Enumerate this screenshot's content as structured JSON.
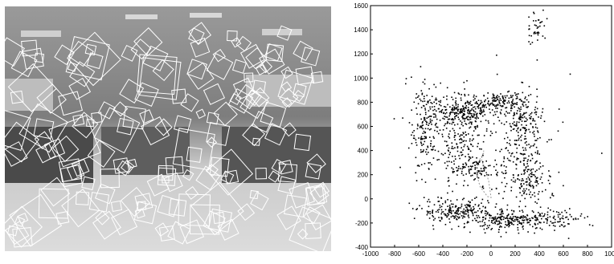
{
  "photo": {
    "description_icon": "office-scene-with-feature-boxes"
  },
  "plot": {
    "chart_data": {
      "type": "scatter",
      "title": "",
      "xlabel": "",
      "ylabel": "",
      "xlim": [
        -1000,
        1000
      ],
      "ylim": [
        -400,
        1600
      ],
      "xticks": [
        "-1000",
        "-800",
        "-600",
        "-400",
        "-200",
        "0",
        "200",
        "400",
        "600",
        "800",
        "1000"
      ],
      "yticks": [
        "-400",
        "-200",
        "0",
        "200",
        "400",
        "600",
        "800",
        "1000",
        "1200",
        "1400",
        "1600"
      ],
      "grid": false,
      "series": [
        {
          "clusters": [
            {
              "cx": -550,
              "cy": 600,
              "sx": 60,
              "sy": 220,
              "n": 180
            },
            {
              "cx": -250,
              "cy": 720,
              "sx": 120,
              "sy": 60,
              "n": 220
            },
            {
              "cx": -250,
              "cy": 450,
              "sx": 80,
              "sy": 180,
              "n": 160
            },
            {
              "cx": 50,
              "cy": 800,
              "sx": 120,
              "sy": 40,
              "n": 140
            },
            {
              "cx": 250,
              "cy": 650,
              "sx": 80,
              "sy": 120,
              "n": 160
            },
            {
              "cx": 300,
              "cy": 200,
              "sx": 80,
              "sy": 150,
              "n": 180
            },
            {
              "cx": -300,
              "cy": -100,
              "sx": 150,
              "sy": 50,
              "n": 200
            },
            {
              "cx": 150,
              "cy": -180,
              "sx": 200,
              "sy": 40,
              "n": 260
            },
            {
              "cx": 550,
              "cy": -150,
              "sx": 150,
              "sy": 40,
              "n": 60
            },
            {
              "cx": 380,
              "cy": 1420,
              "sx": 40,
              "sy": 80,
              "n": 40
            },
            {
              "cx": -100,
              "cy": 250,
              "sx": 100,
              "sy": 40,
              "n": 80
            },
            {
              "cx": 100,
              "cy": 400,
              "sx": 300,
              "sy": 300,
              "n": 120
            }
          ]
        }
      ],
      "trajectory": [
        [
          -60,
          380
        ],
        [
          -110,
          300
        ],
        [
          -120,
          200
        ],
        [
          -90,
          100
        ],
        [
          -30,
          20
        ],
        [
          0,
          10
        ],
        [
          -20,
          150
        ],
        [
          -80,
          330
        ],
        [
          -60,
          400
        ]
      ]
    }
  }
}
